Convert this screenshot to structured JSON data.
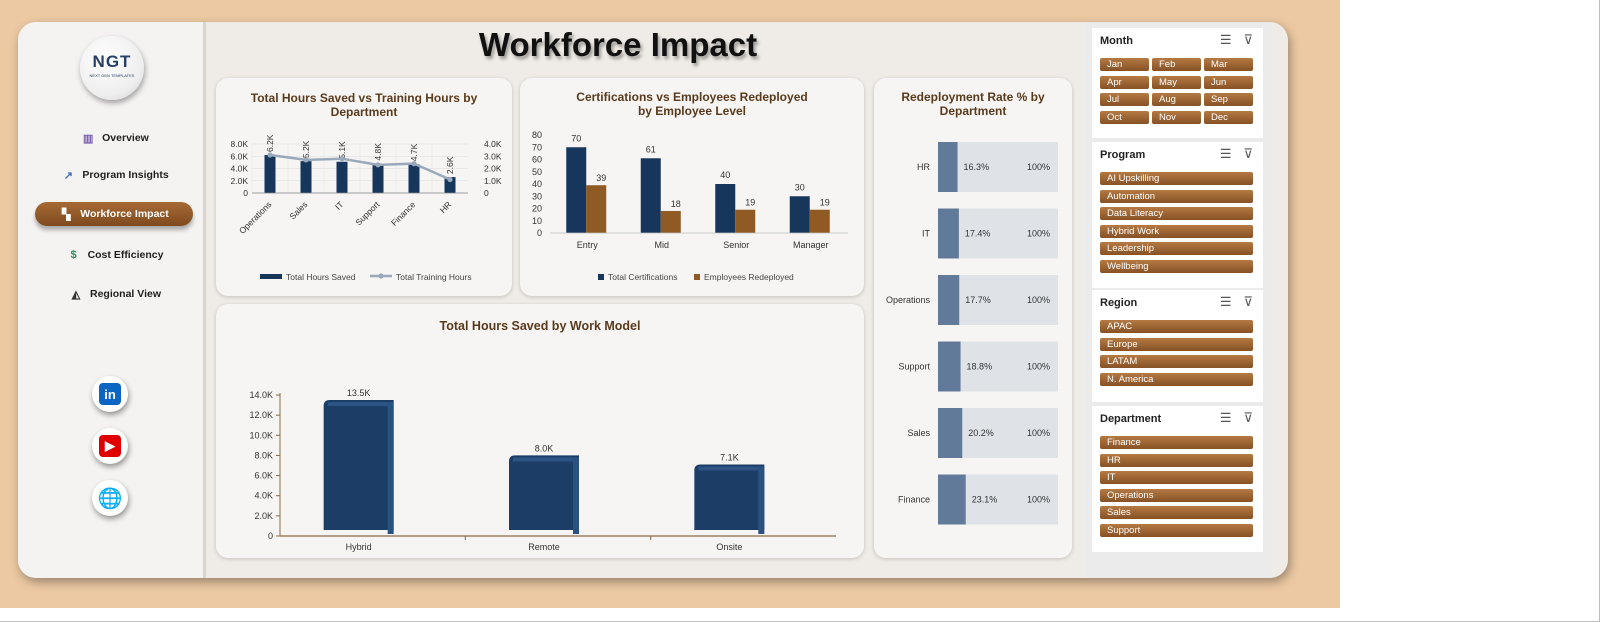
{
  "app": {
    "title": "Workforce Impact",
    "logo_text": "NGT",
    "logo_sub": "NEXT GEN TEMPLATES"
  },
  "sidebar": {
    "items": [
      {
        "label": "Overview",
        "icon": "chart-icon",
        "active": false
      },
      {
        "label": "Program Insights",
        "icon": "trend-icon",
        "active": false
      },
      {
        "label": "Workforce Impact",
        "icon": "people-icon",
        "active": true
      },
      {
        "label": "Cost Efficiency",
        "icon": "money-icon",
        "active": false
      },
      {
        "label": "Regional View",
        "icon": "map-icon",
        "active": false
      }
    ],
    "social": [
      {
        "name": "linkedin-icon",
        "glyph": "in",
        "color": "#0a66c2"
      },
      {
        "name": "youtube-icon",
        "glyph": "▶",
        "color": "#e00000"
      },
      {
        "name": "globe-icon",
        "glyph": "🌐",
        "color": "#1a78c2"
      }
    ]
  },
  "colors": {
    "navy": "#16365c",
    "brown": "#8f5a23",
    "slate": "#617a99",
    "track": "#dfe3e8",
    "gray_line": "#99a8bb"
  },
  "chart_data": [
    {
      "type": "bar",
      "title": "Total Hours Saved vs Training Hours by Department",
      "categories": [
        "Operations",
        "Sales",
        "IT",
        "Support",
        "Finance",
        "HR"
      ],
      "series": [
        {
          "name": "Total Hours Saved",
          "values": [
            6200,
            5200,
            5100,
            4800,
            4700,
            2600
          ],
          "labels": [
            "6.2K",
            "5.2K",
            "5.1K",
            "4.8K",
            "4.7K",
            "2.6K"
          ]
        },
        {
          "name": "Total Training Hours",
          "type": "line",
          "values": [
            3100,
            2700,
            2800,
            2300,
            2400,
            1100
          ]
        }
      ],
      "y_ticks": [
        "0",
        "2.0K",
        "4.0K",
        "6.0K",
        "8.0K"
      ],
      "ylim": [
        0,
        8000
      ],
      "y2_ticks": [
        "0",
        "1.0K",
        "2.0K",
        "3.0K",
        "4.0K"
      ],
      "y2lim": [
        0,
        4000
      ],
      "legend": "bottom"
    },
    {
      "type": "bar",
      "title": "Certifications vs Employees Redeployed by Employee Level",
      "categories": [
        "Entry",
        "Mid",
        "Senior",
        "Manager"
      ],
      "series": [
        {
          "name": "Total Certifications",
          "values": [
            70,
            61,
            40,
            30
          ]
        },
        {
          "name": "Employees Redeployed",
          "values": [
            39,
            18,
            19,
            19
          ]
        }
      ],
      "y_ticks": [
        "0",
        "10",
        "20",
        "30",
        "40",
        "50",
        "60",
        "70",
        "80"
      ],
      "ylim": [
        0,
        80
      ],
      "legend": "bottom"
    },
    {
      "type": "bar",
      "title": "Total Hours Saved by Work Model",
      "categories": [
        "Hybrid",
        "Remote",
        "Onsite"
      ],
      "values": [
        13500,
        8000,
        7100
      ],
      "labels": [
        "13.5K",
        "8.0K",
        "7.1K"
      ],
      "y_ticks": [
        "0",
        "2.0K",
        "4.0K",
        "6.0K",
        "8.0K",
        "10.0K",
        "12.0K",
        "14.0K"
      ],
      "ylim": [
        0,
        14000
      ]
    },
    {
      "type": "bar",
      "orientation": "horizontal",
      "title": "Redeployment Rate % by Department",
      "categories": [
        "HR",
        "IT",
        "Operations",
        "Support",
        "Sales",
        "Finance"
      ],
      "values": [
        16.3,
        17.4,
        17.7,
        18.8,
        20.2,
        23.1
      ],
      "labels": [
        "16.3%",
        "17.4%",
        "17.7%",
        "18.8%",
        "20.2%",
        "23.1%"
      ],
      "max_label": "100%",
      "xlim": [
        0,
        100
      ]
    }
  ],
  "slicers": [
    {
      "title": "Month",
      "columns": 3,
      "items": [
        "Jan",
        "Feb",
        "Mar",
        "Apr",
        "May",
        "Jun",
        "Jul",
        "Aug",
        "Sep",
        "Oct",
        "Nov",
        "Dec"
      ]
    },
    {
      "title": "Program",
      "columns": 1,
      "items": [
        "AI Upskilling",
        "Automation",
        "Data Literacy",
        "Hybrid Work",
        "Leadership",
        "Wellbeing"
      ]
    },
    {
      "title": "Region",
      "columns": 1,
      "items": [
        "APAC",
        "Europe",
        "LATAM",
        "N. America"
      ]
    },
    {
      "title": "Department",
      "columns": 1,
      "items": [
        "Finance",
        "HR",
        "IT",
        "Operations",
        "Sales",
        "Support"
      ]
    }
  ],
  "slicer_icons": {
    "select": "multi-select-icon",
    "clear": "clear-filter-icon"
  }
}
